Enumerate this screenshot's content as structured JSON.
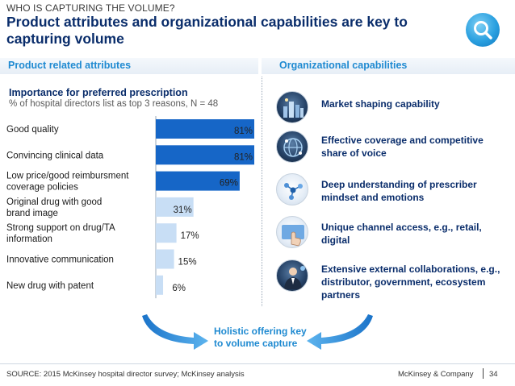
{
  "header": {
    "kicker": "WHO IS CAPTURING THE VOLUME?",
    "title": "Product attributes and organizational capabilities are key to capturing volume"
  },
  "sections": {
    "left": "Product related attributes",
    "right": "Organizational capabilities"
  },
  "chart_data": {
    "type": "bar",
    "orientation": "horizontal",
    "title": "Importance for preferred prescription",
    "subtitle": "% of hospital directors list as top 3 reasons, N = 48",
    "categories": [
      "Good quality",
      "Convincing clinical data",
      "Low price/good reimbursment coverage policies",
      "Original drug with good brand image",
      "Strong support on drug/TA information",
      "Innovative communication",
      "New drug with patent"
    ],
    "category_lines": [
      [
        "Good quality"
      ],
      [
        "Convincing clinical data"
      ],
      [
        "Low price/good reimbursment",
        "coverage policies"
      ],
      [
        "Original drug with good",
        "brand image"
      ],
      [
        "Strong support on drug/TA",
        "information"
      ],
      [
        "Innovative communication"
      ],
      [
        "New drug with patent"
      ]
    ],
    "values": [
      81,
      81,
      69,
      31,
      17,
      15,
      6
    ],
    "value_labels": [
      "81%",
      "81%",
      "69%",
      "31%",
      "17%",
      "15%",
      "6%"
    ],
    "highlight": [
      true,
      true,
      true,
      false,
      false,
      false,
      false
    ],
    "xlim": [
      0,
      100
    ],
    "colors": {
      "highlight": "#1666c7",
      "normal": "#c8def5",
      "label": "#222222"
    }
  },
  "capabilities": [
    {
      "label": "Market shaping capability",
      "icon": "city-lights-icon"
    },
    {
      "label": "Effective coverage and competitive share of voice",
      "icon": "network-globe-icon"
    },
    {
      "label": "Deep understanding of prescriber mindset and emotions",
      "icon": "molecule-icon"
    },
    {
      "label": "Unique channel access, e.g., retail, digital",
      "icon": "touch-hand-icon"
    },
    {
      "label": "Extensive external collaborations, e.g., distributor, government, ecosystem partners",
      "icon": "business-person-icon"
    }
  ],
  "conclusion": {
    "line1": "Holistic offering key",
    "line2": "to volume capture"
  },
  "footer": {
    "source": "SOURCE: 2015 McKinsey hospital director survey; McKinsey analysis",
    "brand": "McKinsey & Company",
    "page": "34"
  },
  "colors": {
    "title": "#0a2d6b",
    "accent": "#1f8ad1"
  }
}
